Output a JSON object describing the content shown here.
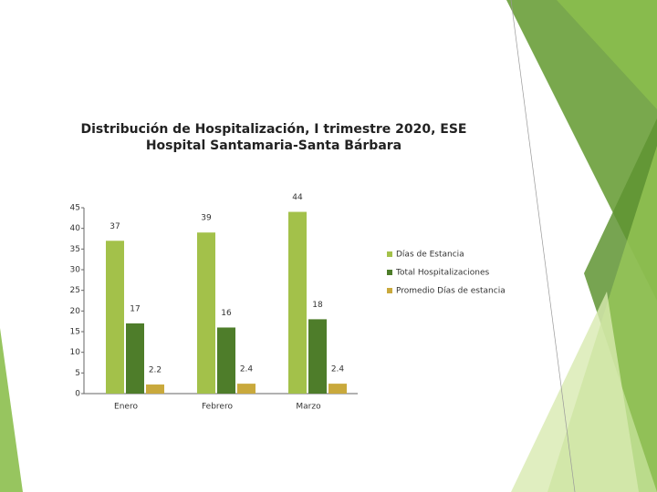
{
  "chart_data": {
    "type": "bar",
    "title": [
      "Distribución de Hospitalización, I trimestre 2020, ESE",
      "Hospital Santamaria-Santa Bárbara"
    ],
    "categories": [
      "Enero",
      "Febrero",
      "Marzo"
    ],
    "series": [
      {
        "name": "Días de Estancia",
        "color": "#a3c14a",
        "values": [
          37,
          39,
          44
        ]
      },
      {
        "name": "Total Hospitalizaciones",
        "color": "#4e7d2a",
        "values": [
          17,
          16,
          18
        ]
      },
      {
        "name": "Promedio Días de estancia",
        "color": "#c9a93c",
        "values": [
          2.2,
          2.4,
          2.4
        ]
      }
    ],
    "ylim": [
      0,
      45
    ],
    "yticks": [
      0,
      5,
      10,
      15,
      20,
      25,
      30,
      35,
      40,
      45
    ],
    "legend": "right"
  }
}
